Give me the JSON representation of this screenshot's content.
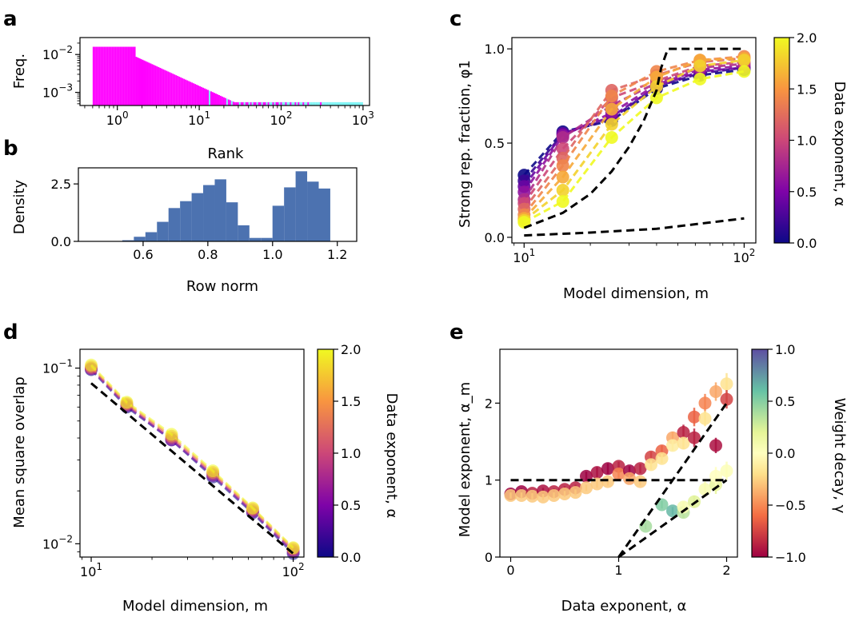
{
  "panel_labels": {
    "a": "a",
    "b": "b",
    "c": "c",
    "d": "d",
    "e": "e"
  },
  "chart_data": [
    {
      "panel": "a",
      "type": "bar",
      "xlabel": "Rank",
      "ylabel": "Freq.",
      "xscale": "log",
      "yscale": "log",
      "xlim": [
        0.35,
        1200
      ],
      "ylim": [
        0.00045,
        0.028
      ],
      "xticks": [
        {
          "v": 1,
          "label": "10^0"
        },
        {
          "v": 10,
          "label": "10^1"
        },
        {
          "v": 100,
          "label": "10^2"
        },
        {
          "v": 1000,
          "label": "10^3"
        }
      ],
      "yticks": [
        {
          "v": 0.001,
          "label": "10^-3"
        },
        {
          "v": 0.01,
          "label": "10^-2"
        }
      ],
      "power_law": {
        "rank_start": 0.5,
        "rank_end": 1000,
        "freq_at_rank1": 0.0145,
        "exponent": 1.0,
        "floor": 0.00055
      },
      "colors": {
        "head": "#ff00ff",
        "tail": "#7ff5f5"
      }
    },
    {
      "panel": "b",
      "type": "bar",
      "xlabel": "Row norm",
      "ylabel": "Density",
      "xlim": [
        0.4,
        1.26
      ],
      "ylim": [
        0,
        3.2
      ],
      "xticks": [
        0.6,
        0.8,
        1.0,
        1.2
      ],
      "yticks": [
        0.0,
        2.5
      ],
      "tick_labels_x": [
        "0.6",
        "0.8",
        "1.0",
        "1.2"
      ],
      "tick_labels_y": [
        "0.0",
        "2.5"
      ],
      "bin_start": 0.5,
      "bin_width": 0.0357,
      "values": [
        0.0,
        0.05,
        0.2,
        0.4,
        0.85,
        1.45,
        1.75,
        2.1,
        2.45,
        2.7,
        1.7,
        0.7,
        0.15,
        0.15,
        1.55,
        2.35,
        3.05,
        2.6,
        2.3
      ],
      "color": "#4c72b0"
    },
    {
      "panel": "c",
      "type": "line",
      "xlabel": "Model dimension, m",
      "ylabel": "Strong rep. fraction, φ1",
      "xscale": "log",
      "xlim": [
        8.8,
        113
      ],
      "ylim": [
        -0.03,
        1.06
      ],
      "xticks": [
        {
          "v": 10,
          "label": "10^1"
        },
        {
          "v": 100,
          "label": "10^2"
        }
      ],
      "yticks": [
        0.0,
        0.5,
        1.0
      ],
      "tick_labels_y": [
        "0.0",
        "0.5",
        "1.0"
      ],
      "x": [
        10,
        15,
        25,
        40,
        63,
        100
      ],
      "series": [
        {
          "alpha": 0.0,
          "values": [
            0.33,
            0.56,
            0.62,
            0.79,
            0.86,
            0.89
          ]
        },
        {
          "alpha": 0.2,
          "values": [
            0.3,
            0.55,
            0.63,
            0.8,
            0.87,
            0.9
          ]
        },
        {
          "alpha": 0.4,
          "values": [
            0.27,
            0.55,
            0.64,
            0.8,
            0.88,
            0.9
          ]
        },
        {
          "alpha": 0.6,
          "values": [
            0.24,
            0.54,
            0.66,
            0.81,
            0.89,
            0.91
          ]
        },
        {
          "alpha": 0.8,
          "values": [
            0.2,
            0.53,
            0.7,
            0.82,
            0.9,
            0.92
          ]
        },
        {
          "alpha": 1.0,
          "values": [
            0.18,
            0.47,
            0.74,
            0.83,
            0.91,
            0.93
          ]
        },
        {
          "alpha": 1.2,
          "values": [
            0.15,
            0.42,
            0.78,
            0.86,
            0.93,
            0.95
          ]
        },
        {
          "alpha": 1.4,
          "values": [
            0.12,
            0.38,
            0.75,
            0.88,
            0.94,
            0.96
          ]
        },
        {
          "alpha": 1.6,
          "values": [
            0.1,
            0.32,
            0.68,
            0.85,
            0.94,
            0.95
          ]
        },
        {
          "alpha": 1.8,
          "values": [
            0.09,
            0.25,
            0.6,
            0.8,
            0.91,
            0.94
          ]
        },
        {
          "alpha": 2.0,
          "values": [
            0.08,
            0.19,
            0.53,
            0.74,
            0.84,
            0.88
          ]
        }
      ],
      "reference_lines": [
        {
          "x": [
            10,
            15,
            20,
            25,
            30,
            35,
            40,
            42,
            45,
            100
          ],
          "values": [
            0.05,
            0.13,
            0.23,
            0.35,
            0.48,
            0.62,
            0.78,
            0.9,
            1.0,
            1.0
          ]
        },
        {
          "x": [
            10,
            20,
            40,
            100
          ],
          "values": [
            0.01,
            0.025,
            0.045,
            0.1
          ]
        }
      ],
      "colorbar": {
        "label": "Data exponent, α",
        "min": 0.0,
        "max": 2.0,
        "ticks": [
          "0.0",
          "0.5",
          "1.0",
          "1.5",
          "2.0"
        ],
        "colormap": "plasma"
      }
    },
    {
      "panel": "d",
      "type": "line",
      "xlabel": "Model dimension, m",
      "ylabel": "Mean square overlap",
      "xscale": "log",
      "yscale": "log",
      "xlim": [
        8.8,
        113
      ],
      "ylim": [
        0.0084,
        0.128
      ],
      "xticks": [
        {
          "v": 10,
          "label": "10^1"
        },
        {
          "v": 100,
          "label": "10^2"
        }
      ],
      "yticks": [
        {
          "v": 0.01,
          "label": "10^-2"
        },
        {
          "v": 0.1,
          "label": "10^-1"
        }
      ],
      "x": [
        10,
        15,
        25,
        40,
        63,
        100
      ],
      "series": [
        {
          "alpha": 0.0,
          "values": [
            0.098,
            0.06,
            0.039,
            0.024,
            0.015,
            0.0088
          ]
        },
        {
          "alpha": 0.5,
          "values": [
            0.099,
            0.061,
            0.039,
            0.0245,
            0.0152,
            0.009
          ]
        },
        {
          "alpha": 1.0,
          "values": [
            0.1,
            0.062,
            0.04,
            0.025,
            0.0155,
            0.0092
          ]
        },
        {
          "alpha": 1.5,
          "values": [
            0.102,
            0.063,
            0.041,
            0.0255,
            0.0158,
            0.0094
          ]
        },
        {
          "alpha": 2.0,
          "values": [
            0.104,
            0.064,
            0.042,
            0.026,
            0.016,
            0.0095
          ]
        }
      ],
      "reference_lines": [
        {
          "x": [
            10,
            100
          ],
          "values": [
            0.082,
            0.0088
          ]
        }
      ],
      "colorbar": {
        "label": "Data exponent, α",
        "min": 0.0,
        "max": 2.0,
        "ticks": [
          "0.0",
          "0.5",
          "1.0",
          "1.5",
          "2.0"
        ],
        "colormap": "plasma"
      }
    },
    {
      "panel": "e",
      "type": "scatter",
      "xlabel": "Data exponent, α",
      "ylabel": "Model exponent, α_m",
      "xlim": [
        -0.1,
        2.1
      ],
      "ylim": [
        0,
        2.7
      ],
      "xticks": [
        0,
        1,
        2
      ],
      "yticks": [
        0,
        1,
        2
      ],
      "tick_labels_x": [
        "0",
        "1",
        "2"
      ],
      "tick_labels_y": [
        "0",
        "1",
        "2"
      ],
      "points": [
        {
          "x": 0.0,
          "y": 0.82,
          "gamma": -1.0,
          "err": 0.04
        },
        {
          "x": 0.0,
          "y": 0.8,
          "gamma": -0.4,
          "err": 0.04
        },
        {
          "x": 0.1,
          "y": 0.85,
          "gamma": -1.0,
          "err": 0.04
        },
        {
          "x": 0.1,
          "y": 0.8,
          "gamma": -0.4,
          "err": 0.04
        },
        {
          "x": 0.2,
          "y": 0.83,
          "gamma": -0.9,
          "err": 0.04
        },
        {
          "x": 0.2,
          "y": 0.79,
          "gamma": -0.4,
          "err": 0.04
        },
        {
          "x": 0.3,
          "y": 0.86,
          "gamma": -0.95,
          "err": 0.04
        },
        {
          "x": 0.3,
          "y": 0.78,
          "gamma": -0.4,
          "err": 0.04
        },
        {
          "x": 0.4,
          "y": 0.85,
          "gamma": -0.9,
          "err": 0.04
        },
        {
          "x": 0.4,
          "y": 0.8,
          "gamma": -0.4,
          "err": 0.04
        },
        {
          "x": 0.5,
          "y": 0.88,
          "gamma": -0.9,
          "err": 0.04
        },
        {
          "x": 0.5,
          "y": 0.82,
          "gamma": -0.4,
          "err": 0.04
        },
        {
          "x": 0.6,
          "y": 0.9,
          "gamma": -0.9,
          "err": 0.04
        },
        {
          "x": 0.6,
          "y": 0.84,
          "gamma": -0.4,
          "err": 0.04
        },
        {
          "x": 0.7,
          "y": 1.05,
          "gamma": -1.0,
          "err": 0.06
        },
        {
          "x": 0.7,
          "y": 0.9,
          "gamma": -0.4,
          "err": 0.04
        },
        {
          "x": 0.8,
          "y": 1.1,
          "gamma": -0.95,
          "err": 0.07
        },
        {
          "x": 0.8,
          "y": 0.95,
          "gamma": -0.4,
          "err": 0.05
        },
        {
          "x": 0.9,
          "y": 1.15,
          "gamma": -1.0,
          "err": 0.07
        },
        {
          "x": 0.9,
          "y": 0.98,
          "gamma": -0.4,
          "err": 0.05
        },
        {
          "x": 1.0,
          "y": 1.18,
          "gamma": -0.9,
          "err": 0.06
        },
        {
          "x": 1.0,
          "y": 1.08,
          "gamma": -0.6,
          "err": 0.06
        },
        {
          "x": 1.1,
          "y": 1.12,
          "gamma": -1.0,
          "err": 0.06
        },
        {
          "x": 1.1,
          "y": 1.02,
          "gamma": -0.5,
          "err": 0.05
        },
        {
          "x": 1.2,
          "y": 1.15,
          "gamma": -0.9,
          "err": 0.06
        },
        {
          "x": 1.2,
          "y": 0.98,
          "gamma": -0.4,
          "err": 0.05
        },
        {
          "x": 1.3,
          "y": 1.3,
          "gamma": -0.8,
          "err": 0.07
        },
        {
          "x": 1.3,
          "y": 1.2,
          "gamma": -0.3,
          "err": 0.06
        },
        {
          "x": 1.4,
          "y": 1.38,
          "gamma": -0.7,
          "err": 0.07
        },
        {
          "x": 1.4,
          "y": 1.28,
          "gamma": -0.3,
          "err": 0.06
        },
        {
          "x": 1.5,
          "y": 1.55,
          "gamma": -0.5,
          "err": 0.08
        },
        {
          "x": 1.5,
          "y": 1.45,
          "gamma": -0.2,
          "err": 0.07
        },
        {
          "x": 1.6,
          "y": 1.62,
          "gamma": -0.9,
          "err": 0.1
        },
        {
          "x": 1.6,
          "y": 1.48,
          "gamma": -0.3,
          "err": 0.08
        },
        {
          "x": 1.7,
          "y": 1.82,
          "gamma": -0.7,
          "err": 0.12
        },
        {
          "x": 1.7,
          "y": 1.55,
          "gamma": -0.9,
          "err": 0.12
        },
        {
          "x": 1.8,
          "y": 2.0,
          "gamma": -0.6,
          "err": 0.12
        },
        {
          "x": 1.8,
          "y": 1.8,
          "gamma": -0.3,
          "err": 0.1
        },
        {
          "x": 1.9,
          "y": 2.15,
          "gamma": -0.5,
          "err": 0.12
        },
        {
          "x": 1.9,
          "y": 1.45,
          "gamma": -0.95,
          "err": 0.1
        },
        {
          "x": 2.0,
          "y": 2.25,
          "gamma": -0.3,
          "err": 0.14
        },
        {
          "x": 2.0,
          "y": 2.05,
          "gamma": -0.8,
          "err": 0.12
        },
        {
          "x": 1.25,
          "y": 0.4,
          "gamma": 0.5,
          "err": 0.04
        },
        {
          "x": 1.4,
          "y": 0.68,
          "gamma": 0.6,
          "err": 0.05
        },
        {
          "x": 1.5,
          "y": 0.6,
          "gamma": 0.7,
          "err": 0.05
        },
        {
          "x": 1.6,
          "y": 0.58,
          "gamma": 0.45,
          "err": 0.07
        },
        {
          "x": 1.6,
          "y": 0.65,
          "gamma": 0.1,
          "err": 0.07
        },
        {
          "x": 1.7,
          "y": 0.72,
          "gamma": 0.35,
          "err": 0.08
        },
        {
          "x": 1.8,
          "y": 0.88,
          "gamma": 0.1,
          "err": 0.1
        },
        {
          "x": 1.9,
          "y": 0.94,
          "gamma": 0.3,
          "err": 0.12
        },
        {
          "x": 1.9,
          "y": 1.05,
          "gamma": 0.0,
          "err": 0.12
        },
        {
          "x": 2.0,
          "y": 1.12,
          "gamma": 0.05,
          "err": 0.12
        }
      ],
      "reference_lines": [
        {
          "x": [
            0,
            2
          ],
          "values": [
            1,
            1
          ]
        },
        {
          "x": [
            1,
            2
          ],
          "values": [
            0,
            2
          ]
        },
        {
          "x": [
            1,
            2
          ],
          "values": [
            0,
            1
          ]
        }
      ],
      "colorbar": {
        "label": "Weight decay, γ",
        "min": -1.0,
        "max": 1.0,
        "ticks": [
          "−1.0",
          "−0.5",
          "0.0",
          "0.5",
          "1.0"
        ],
        "colormap": "spectral"
      }
    }
  ]
}
